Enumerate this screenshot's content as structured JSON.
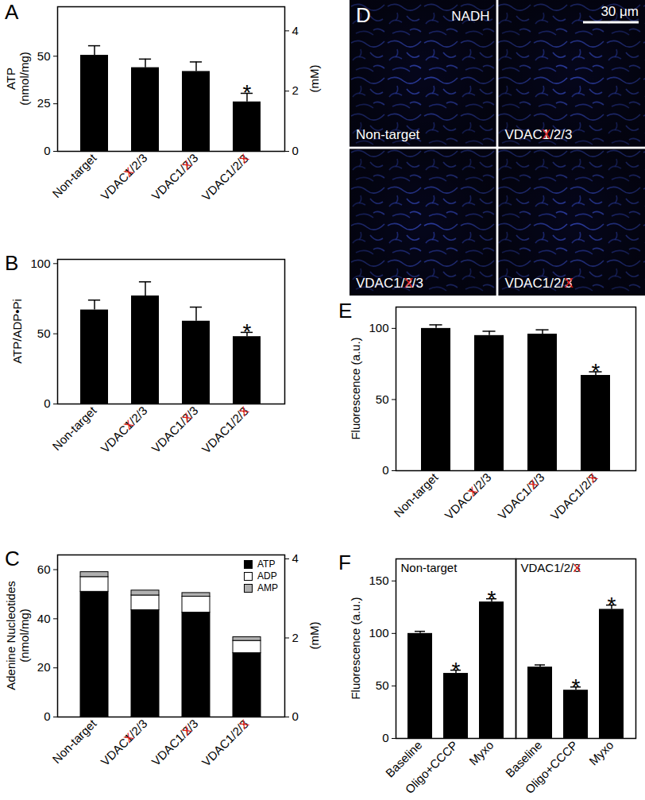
{
  "crossed_mark": "X",
  "chart_data": [
    {
      "type": "bar",
      "panel": "A",
      "ylabel": "ATP\n(nmol/mg)",
      "y2label": "(mM)",
      "categories": [
        "Non-target",
        "VDAC1/2/3",
        "VDAC1/2/3",
        "VDAC1/2/3"
      ],
      "crossed": [
        null,
        "1",
        "2",
        "3"
      ],
      "values": [
        50.5,
        44,
        42,
        26
      ],
      "errors": [
        5,
        4.5,
        5,
        4.5
      ],
      "significance": [
        null,
        null,
        null,
        "*"
      ],
      "color": "#000000",
      "ylim": [
        0,
        76
      ],
      "yticks": [
        0,
        25,
        50
      ],
      "y2lim": [
        0,
        4.8
      ],
      "y2ticks": [
        0,
        2,
        4
      ]
    },
    {
      "type": "bar",
      "panel": "B",
      "ylabel": "ATP/ADP•Pi",
      "categories": [
        "Non-target",
        "VDAC1/2/3",
        "VDAC1/2/3",
        "VDAC1/2/3"
      ],
      "crossed": [
        null,
        "1",
        "2",
        "3"
      ],
      "values": [
        67,
        77,
        59,
        48
      ],
      "errors": [
        7,
        10,
        10,
        3
      ],
      "significance": [
        null,
        null,
        null,
        "*"
      ],
      "color": "#000000",
      "ylim": [
        0,
        103
      ],
      "yticks": [
        0,
        50,
        100
      ]
    },
    {
      "type": "bar",
      "stacked": true,
      "panel": "C",
      "ylabel": "Adenine Nucleotides\n(nmol/mg)",
      "y2label": "(mM)",
      "categories": [
        "Non-target",
        "VDAC1/2/3",
        "VDAC1/2/3",
        "VDAC1/2/3"
      ],
      "crossed": [
        null,
        "1",
        "2",
        "3"
      ],
      "series": [
        {
          "name": "ATP",
          "color": "#000000",
          "values": [
            51,
            43.5,
            42.5,
            26
          ]
        },
        {
          "name": "ADP",
          "color": "#ffffff",
          "values": [
            6,
            6,
            6.5,
            5
          ]
        },
        {
          "name": "AMP",
          "color": "#b0b0b0",
          "values": [
            2,
            2,
            1.5,
            1.5
          ]
        }
      ],
      "legend": "top-right",
      "ylim": [
        0,
        66
      ],
      "yticks": [
        0,
        20,
        40,
        60
      ],
      "y2lim": [
        0,
        4.1
      ],
      "y2ticks": [
        0,
        2,
        4
      ]
    },
    {
      "type": "image",
      "panel": "D",
      "channel": "NADH",
      "scale_bar": "30 μm",
      "labels": [
        "Non-target",
        "VDAC1/2/3",
        "VDAC1/2/3",
        "VDAC1/2/3"
      ],
      "crossed": [
        null,
        "1",
        "2",
        "3"
      ]
    },
    {
      "type": "bar",
      "panel": "E",
      "ylabel": "Fluorescence (a.u.)",
      "categories": [
        "Non-target",
        "VDAC1/2/3",
        "VDAC1/2/3",
        "VDAC1/2/3"
      ],
      "crossed": [
        null,
        "1",
        "2",
        "3"
      ],
      "values": [
        100,
        95,
        96,
        67
      ],
      "errors": [
        2.5,
        3,
        3,
        2.5
      ],
      "significance": [
        null,
        null,
        null,
        "*"
      ],
      "color": "#000000",
      "ylim": [
        0,
        115
      ],
      "yticks": [
        0,
        50,
        100
      ]
    },
    {
      "type": "bar",
      "panel": "F",
      "ylabel": "Fluorescence (a.u.)",
      "color": "#000000",
      "ylim": [
        0,
        171
      ],
      "yticks": [
        0,
        50,
        100,
        150
      ],
      "groups": [
        {
          "name": "Non-target",
          "crossed": null,
          "categories": [
            "Baseline",
            "Oligo+CCCP",
            "Myxo"
          ],
          "values": [
            100,
            62,
            130
          ],
          "errors": [
            2,
            3,
            3
          ],
          "significance": [
            null,
            "*",
            "*"
          ]
        },
        {
          "name": "VDAC1/2/3",
          "crossed": "3",
          "categories": [
            "Baseline",
            "Oligo+CCCP",
            "Myxo"
          ],
          "values": [
            68,
            46,
            123
          ],
          "errors": [
            2,
            3,
            4
          ],
          "significance": [
            null,
            "*",
            "*"
          ]
        }
      ]
    }
  ]
}
